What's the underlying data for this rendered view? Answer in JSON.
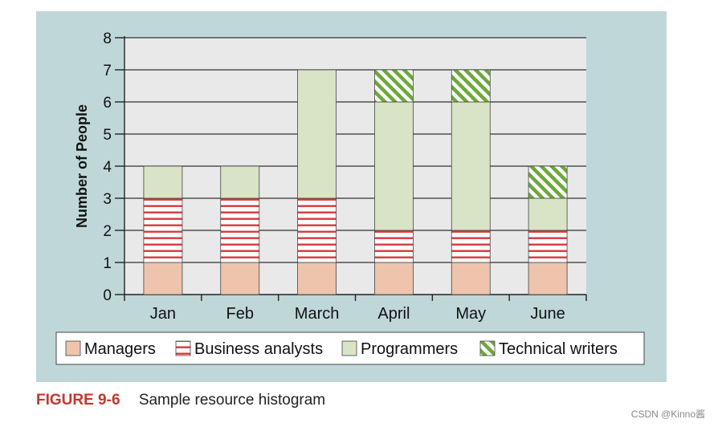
{
  "caption": {
    "figure_label": "FIGURE 9-6",
    "text": "Sample resource histogram"
  },
  "watermark": "CSDN @Kinno酱",
  "colors": {
    "panel_bg": "#bfd7d8",
    "plot_bg": "#e9e9e9",
    "managers": "#efc4ac",
    "business_analysts_stripe": "#d8383e",
    "programmers": "#d8e4c5",
    "technical_writers_stripe": "#6ca83a",
    "caption_label": "#c0392b"
  },
  "chart_data": {
    "type": "bar",
    "stacked": true,
    "title": "",
    "xlabel": "",
    "ylabel": "Number of People",
    "ylim": [
      0,
      8
    ],
    "yticks": [
      0,
      1,
      2,
      3,
      4,
      5,
      6,
      7,
      8
    ],
    "grid": true,
    "legend_position": "bottom",
    "categories": [
      "Jan",
      "Feb",
      "March",
      "April",
      "May",
      "June"
    ],
    "series": [
      {
        "name": "Managers",
        "pattern": "solid",
        "values": [
          1,
          1,
          1,
          1,
          1,
          1
        ]
      },
      {
        "name": "Business analysts",
        "pattern": "horizontal-stripes",
        "values": [
          2,
          2,
          2,
          1,
          1,
          1
        ]
      },
      {
        "name": "Programmers",
        "pattern": "solid",
        "values": [
          1,
          1,
          4,
          4,
          4,
          1
        ]
      },
      {
        "name": "Technical writers",
        "pattern": "diagonal-stripes",
        "values": [
          0,
          0,
          0,
          1,
          1,
          1
        ]
      }
    ]
  }
}
